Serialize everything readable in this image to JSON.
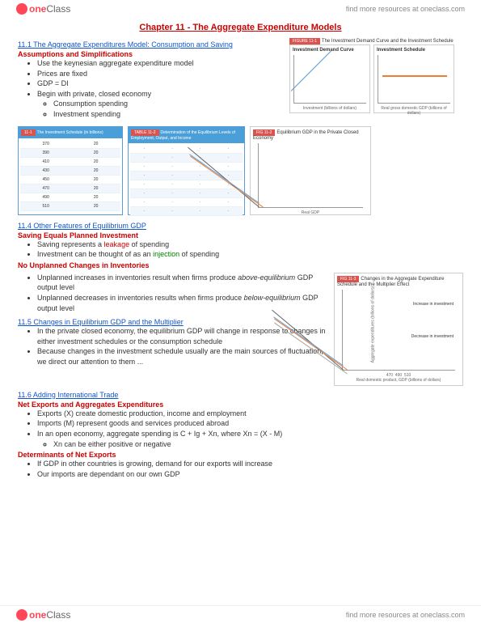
{
  "header": {
    "logo_one": "one",
    "logo_class": "Class",
    "find_more": "find more resources at oneclass.com"
  },
  "footer": {
    "logo_one": "one",
    "logo_class": "Class",
    "find_more": "find more resources at oneclass.com"
  },
  "title": "Chapter 11 - The Aggregate Expenditure Models",
  "s1": {
    "link": "11.1 The Aggregate Expenditures Model: Consumption and Saving",
    "head": "Assumptions and Simplifications",
    "b1": "Use the keynesian aggregate expenditure model",
    "b2": "Prices are fixed",
    "b3": "GDP = DI",
    "b4": "Begin with private, closed economy",
    "b4a": "Consumption spending",
    "b4b": "Investment spending"
  },
  "chart1": {
    "tag": "FIGURE 11-1",
    "title": "The Investment Demand Curve and the Investment Schedule",
    "left_title": "Investment Demand Curve",
    "left_label": "Investment demand",
    "right_title": "Investment Schedule",
    "y_axis": "Real interest rate, r",
    "x_axis_left": "Investment (billions of dollars)",
    "x_axis_right": "Real gross domestic GDP (billions of dollars)",
    "line_down_color": "#5b9bd5",
    "line_flat_color": "#ed7d31"
  },
  "table1": {
    "tag": "11-1",
    "title": "The Investment Schedule (in billions)",
    "header_bg": "#4a9fd8",
    "rows": [
      [
        "370",
        "20"
      ],
      [
        "390",
        "20"
      ],
      [
        "410",
        "20"
      ],
      [
        "430",
        "20"
      ],
      [
        "450",
        "20"
      ],
      [
        "470",
        "20"
      ],
      [
        "490",
        "20"
      ],
      [
        "510",
        "20"
      ]
    ]
  },
  "table2": {
    "tag": "TABLE 11-2",
    "title": "Determination of the Equilibrium Levels of Employment, Output, and Income",
    "header_bg": "#4a9fd8"
  },
  "chart2": {
    "tag": "FIG 11-2",
    "title": "Equilibrium GDP in the Private Closed Economy",
    "y_label": "Aggregate expenditures",
    "x_label": "Real GDP",
    "colors": {
      "diag": "#666",
      "ae1": "#ed7d31",
      "ae2": "#5b9bd5"
    }
  },
  "s4": {
    "link": "11.4 Other Features of Equilibrium GDP",
    "head1": "Saving Equals Planned Investment",
    "b1a": "Saving represents a ",
    "b1_leak": "leakage",
    "b1b": " of spending",
    "b2a": "Investment can be thought of as an ",
    "b2_inj": "injection",
    "b2b": " of spending",
    "head2": "No Unplanned Changes in Inventories",
    "b3a": "Unplanned increases in inventories result when firms produce ",
    "b3_em": "above-equilibrium",
    "b3b": " GDP output level",
    "b4a": "Unplanned decreases in inventories results when firms produce ",
    "b4_em": "below-equilibrium",
    "b4b": " GDP output level"
  },
  "s5": {
    "link": "11.5 Changes in Equilibrium GDP and the Multiplier",
    "b1": "In the private closed economy, the equilibrium GDP will change in response to changes in either investment schedules or the consumption schedule",
    "b2": "Because changes in the investment schedule usually are the main sources of fluctuation, we direct our attention to them ..."
  },
  "chart3": {
    "tag": "FIG 11-3",
    "title": "Changes in the Aggregate Expenditure Schedule and the Multiplier Effect",
    "y_label": "Aggregate expenditures (billions of dollars)",
    "x_label": "Real domestic product, GDP (billions of dollars)",
    "label_inc": "Increase in investment",
    "label_dec": "Decrease in investment",
    "ticks": [
      "470",
      "490",
      "510"
    ],
    "colors": {
      "diag": "#666",
      "ae1": "#ed7d31",
      "ae2": "#5b9bd5",
      "ae3": "#a5a5a5"
    }
  },
  "s6": {
    "link": "11.6 Adding International Trade",
    "head1": "Net Exports and Aggregates Expenditures",
    "b1": "Exports (X) create domestic production, income and employment",
    "b2": "Imports (M) represent goods and services produced abroad",
    "b3": "In an open economy, aggregate spending is C + Ig + Xn, where Xn = (X - M)",
    "b3a": "Xn can be either positive or negative",
    "head2": "Determinants of Net Exports",
    "b4": "If GDP in other countries is growing, demand for our exports will increase",
    "b5": "Our imports are dependant on our own GDP"
  }
}
